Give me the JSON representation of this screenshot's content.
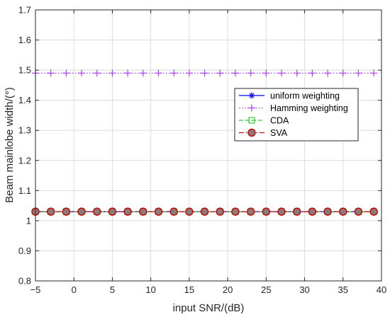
{
  "chart_data": {
    "type": "line",
    "xlabel": "input SNR/(dB)",
    "ylabel": "Beam mainlobe width/(°)",
    "xlim": [
      -5,
      40
    ],
    "ylim": [
      0.8,
      1.7
    ],
    "xticks": [
      -5,
      0,
      5,
      10,
      15,
      20,
      25,
      30,
      35,
      40
    ],
    "yticks": [
      0.8,
      0.9,
      1.0,
      1.1,
      1.2,
      1.3,
      1.4,
      1.5,
      1.6,
      1.7
    ],
    "xtick_labels": [
      "−5",
      "0",
      "5",
      "10",
      "15",
      "20",
      "25",
      "30",
      "35",
      "40"
    ],
    "ytick_labels": [
      "0.8",
      "0.9",
      "1",
      "1.1",
      "1.2",
      "1.3",
      "1.4",
      "1.5",
      "1.6",
      "1.7"
    ],
    "grid": true,
    "legend_position": "right, upper-middle",
    "x": [
      -5,
      -3,
      -1,
      1,
      3,
      5,
      7,
      9,
      11,
      13,
      15,
      17,
      19,
      21,
      23,
      25,
      27,
      29,
      31,
      33,
      35,
      37,
      39
    ],
    "series": [
      {
        "name": "uniform weighting",
        "color": "#0000ff",
        "line": "solid",
        "marker": "asterisk",
        "values": [
          1.03,
          1.03,
          1.03,
          1.03,
          1.03,
          1.03,
          1.03,
          1.03,
          1.03,
          1.03,
          1.03,
          1.03,
          1.03,
          1.03,
          1.03,
          1.03,
          1.03,
          1.03,
          1.03,
          1.03,
          1.03,
          1.03,
          1.03
        ]
      },
      {
        "name": "Hamming weighting",
        "color": "#b040ff",
        "line": "dotted",
        "marker": "plus",
        "values": [
          1.49,
          1.49,
          1.49,
          1.49,
          1.49,
          1.49,
          1.49,
          1.49,
          1.49,
          1.49,
          1.49,
          1.49,
          1.49,
          1.49,
          1.49,
          1.49,
          1.49,
          1.49,
          1.49,
          1.49,
          1.49,
          1.49,
          1.49
        ]
      },
      {
        "name": "CDA",
        "color": "#33cc33",
        "line": "dashed",
        "marker": "square",
        "values": [
          1.03,
          1.03,
          1.03,
          1.03,
          1.03,
          1.03,
          1.03,
          1.03,
          1.03,
          1.03,
          1.03,
          1.03,
          1.03,
          1.03,
          1.03,
          1.03,
          1.03,
          1.03,
          1.03,
          1.03,
          1.03,
          1.03,
          1.03
        ]
      },
      {
        "name": "SVA",
        "color": "#cc0000",
        "line": "dashdot",
        "marker": "circle",
        "marker_fill": "#8b7a7a",
        "values": [
          1.03,
          1.03,
          1.03,
          1.03,
          1.03,
          1.03,
          1.03,
          1.03,
          1.03,
          1.03,
          1.03,
          1.03,
          1.03,
          1.03,
          1.03,
          1.03,
          1.03,
          1.03,
          1.03,
          1.03,
          1.03,
          1.03,
          1.03
        ]
      }
    ]
  }
}
